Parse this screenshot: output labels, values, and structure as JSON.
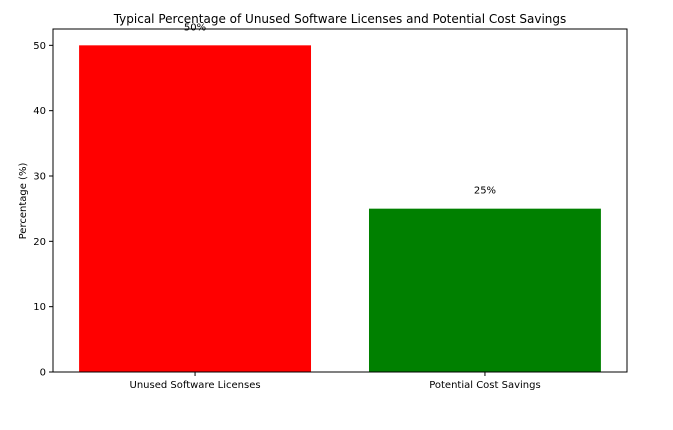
{
  "chart_data": {
    "type": "bar",
    "title": "Typical Percentage of Unused Software Licenses and Potential Cost Savings",
    "xlabel": "",
    "ylabel": "Percentage (%)",
    "categories": [
      "Unused Software Licenses",
      "Potential Cost Savings"
    ],
    "values": [
      50,
      25
    ],
    "data_labels": [
      "50%",
      "25%"
    ],
    "colors": [
      "#ff0000",
      "#008000"
    ],
    "ylim": [
      0,
      52.5
    ],
    "yticks": [
      0,
      10,
      20,
      30,
      40,
      50
    ],
    "grid": false,
    "legend": "none"
  }
}
